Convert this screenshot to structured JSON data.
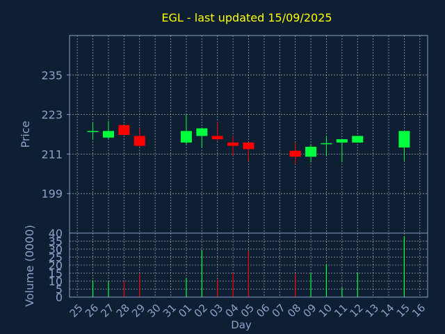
{
  "title": "EGL - last updated 15/09/2025",
  "colors": {
    "background": "#0f1f33",
    "title": "#ffff00",
    "axis_text": "#8aa2c8",
    "frame": "#8aa2c8",
    "grid": "#c8c8c8",
    "up": "#00ff3c",
    "down": "#ff0000"
  },
  "chart_data": [
    {
      "type": "candlestick",
      "ylabel": "Price",
      "ylim": [
        187,
        247
      ],
      "yticks": [
        199,
        211,
        223,
        235
      ],
      "grid": true,
      "candles": [
        {
          "day": "26",
          "open": 217.8,
          "high": 220.5,
          "low": 215.3,
          "close": 218.0
        },
        {
          "day": "27",
          "open": 216.0,
          "high": 221.0,
          "low": 215.5,
          "close": 218.0
        },
        {
          "day": "28",
          "open": 219.8,
          "high": 219.8,
          "low": 216.8,
          "close": 216.8
        },
        {
          "day": "29",
          "open": 216.5,
          "high": 218.8,
          "low": 213.2,
          "close": 213.5
        },
        {
          "day": "01",
          "open": 214.5,
          "high": 223.0,
          "low": 214.0,
          "close": 218.0
        },
        {
          "day": "02",
          "open": 216.5,
          "high": 219.0,
          "low": 213.0,
          "close": 218.8
        },
        {
          "day": "03",
          "open": 216.5,
          "high": 220.8,
          "low": 215.0,
          "close": 215.5
        },
        {
          "day": "04",
          "open": 214.5,
          "high": 216.5,
          "low": 210.5,
          "close": 213.5
        },
        {
          "day": "05",
          "open": 214.5,
          "high": 214.5,
          "low": 209.0,
          "close": 212.5
        },
        {
          "day": "08",
          "open": 212.0,
          "high": 214.5,
          "low": 208.0,
          "close": 210.2
        },
        {
          "day": "09",
          "open": 210.2,
          "high": 214.0,
          "low": 208.5,
          "close": 213.2
        },
        {
          "day": "10",
          "open": 214.0,
          "high": 216.5,
          "low": 210.5,
          "close": 214.3
        },
        {
          "day": "11",
          "open": 214.5,
          "high": 215.5,
          "low": 208.5,
          "close": 215.5
        },
        {
          "day": "12",
          "open": 214.5,
          "high": 216.5,
          "low": 214.5,
          "close": 216.5
        },
        {
          "day": "15",
          "open": 213.0,
          "high": 218.0,
          "low": 209.0,
          "close": 218.0
        }
      ]
    },
    {
      "type": "bar",
      "ylabel": "Volume (0000)",
      "ylim": [
        0,
        40
      ],
      "yticks": [
        0,
        5,
        10,
        15,
        20,
        25,
        30,
        35,
        40
      ],
      "xlabel": "Day",
      "grid": true,
      "categories": [
        "25",
        "26",
        "27",
        "28",
        "29",
        "30",
        "31",
        "01",
        "02",
        "03",
        "04",
        "05",
        "06",
        "07",
        "08",
        "09",
        "10",
        "11",
        "12",
        "13",
        "14",
        "15",
        "16"
      ],
      "volumes": [
        {
          "day": "26",
          "value": 10.5,
          "direction": "up"
        },
        {
          "day": "27",
          "value": 10.0,
          "direction": "up"
        },
        {
          "day": "28",
          "value": 10.0,
          "direction": "down"
        },
        {
          "day": "29",
          "value": 14.5,
          "direction": "down"
        },
        {
          "day": "01",
          "value": 12.0,
          "direction": "up"
        },
        {
          "day": "02",
          "value": 29.5,
          "direction": "up"
        },
        {
          "day": "03",
          "value": 11.0,
          "direction": "down"
        },
        {
          "day": "04",
          "value": 15.0,
          "direction": "down"
        },
        {
          "day": "05",
          "value": 28.5,
          "direction": "down"
        },
        {
          "day": "08",
          "value": 14.5,
          "direction": "down"
        },
        {
          "day": "09",
          "value": 15.0,
          "direction": "up"
        },
        {
          "day": "10",
          "value": 20.5,
          "direction": "up"
        },
        {
          "day": "11",
          "value": 6.0,
          "direction": "up"
        },
        {
          "day": "12",
          "value": 15.5,
          "direction": "up"
        },
        {
          "day": "15",
          "value": 38.0,
          "direction": "up"
        }
      ]
    }
  ]
}
